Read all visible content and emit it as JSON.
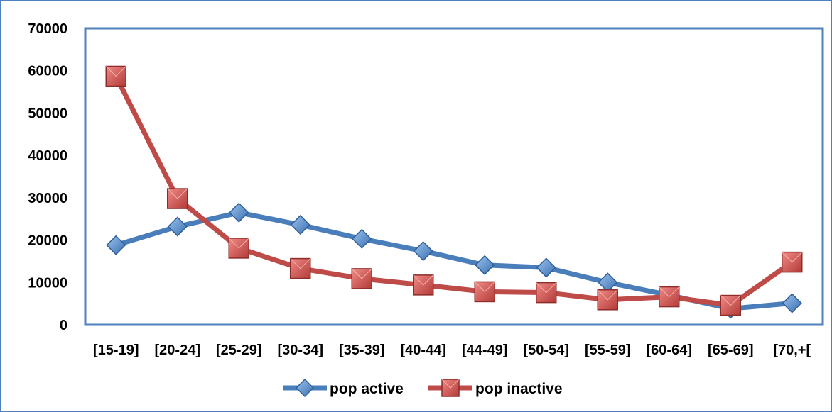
{
  "chart_data": {
    "type": "line",
    "title": "",
    "xlabel": "",
    "ylabel": "",
    "categories": [
      "[15-19]",
      "[20-24]",
      "[25-29]",
      "[30-34]",
      "[35-39]",
      "[40-44]",
      "[44-49]",
      "[50-54]",
      "[55-59]",
      "[60-64]",
      "[65-69]",
      "[70,+["
    ],
    "ylim": [
      0,
      70000
    ],
    "yticks": [
      "0",
      "10000",
      "20000",
      "30000",
      "40000",
      "50000",
      "60000",
      "70000"
    ],
    "grid": false,
    "legend_position": "bottom",
    "series": [
      {
        "name": "pop active",
        "color": "#4a7ebb",
        "marker": "diamond",
        "values": [
          18800,
          23200,
          26500,
          23600,
          20300,
          17400,
          14100,
          13500,
          10000,
          7000,
          3800,
          5100
        ]
      },
      {
        "name": "pop inactive",
        "color": "#be4b48",
        "marker": "square",
        "values": [
          58700,
          29800,
          18100,
          13300,
          10900,
          9400,
          7800,
          7600,
          5900,
          6600,
          4600,
          14800
        ]
      }
    ],
    "frame_color": "#4f81bd"
  }
}
